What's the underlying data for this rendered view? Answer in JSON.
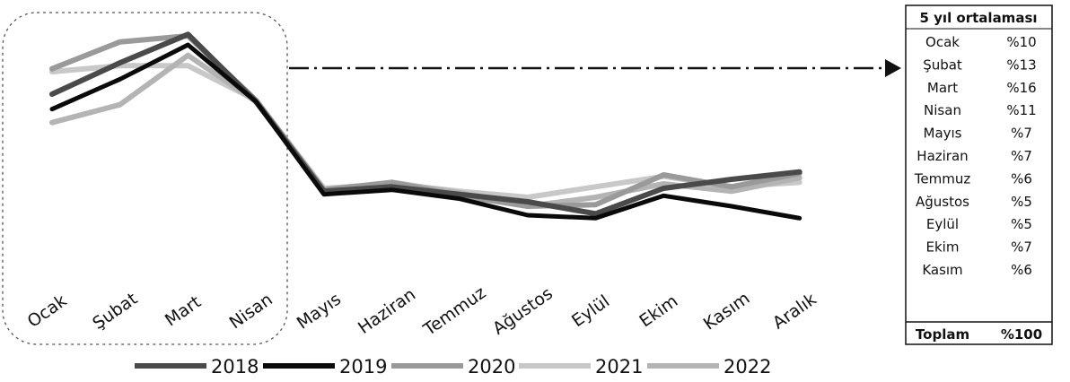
{
  "chart_data": {
    "type": "line",
    "categories": [
      "Ocak",
      "Şubat",
      "Mart",
      "Nisan",
      "Mayıs",
      "Haziran",
      "Temmuz",
      "Ağustos",
      "Eylül",
      "Ekim",
      "Kasım",
      "Aralık"
    ],
    "series": [
      {
        "name": "2018",
        "color": "#4a4a4a",
        "values": [
          13.5,
          15.6,
          17.5,
          13.0,
          7.0,
          7.3,
          6.8,
          6.3,
          5.5,
          7.2,
          7.8,
          8.3
        ]
      },
      {
        "name": "2019",
        "color": "#0a0a0a",
        "values": [
          12.5,
          14.5,
          16.8,
          13.0,
          6.8,
          7.1,
          6.5,
          5.4,
          5.2,
          6.7,
          6.0,
          5.2
        ]
      },
      {
        "name": "2020",
        "color": "#9a9a9a",
        "values": [
          15.2,
          17.0,
          17.4,
          13.1,
          7.1,
          7.6,
          6.7,
          6.0,
          6.1,
          8.1,
          7.3,
          8.2
        ]
      },
      {
        "name": "2021",
        "color": "#c8c8c8",
        "values": [
          15.0,
          15.4,
          15.4,
          13.1,
          7.2,
          7.5,
          7.0,
          6.6,
          7.3,
          8.0,
          7.3,
          7.6
        ]
      },
      {
        "name": "2022",
        "color": "#b4b4b4",
        "values": [
          11.6,
          12.8,
          16.1,
          13.0,
          7.0,
          7.6,
          6.9,
          6.0,
          6.6,
          7.5,
          7.0,
          7.9
        ]
      }
    ],
    "xlabel": "",
    "ylabel": "",
    "ylim": [
      4.8,
      18.0
    ],
    "grid": false,
    "legend": "bottom",
    "highlight_months": [
      "Ocak",
      "Şubat",
      "Mart",
      "Nisan"
    ]
  },
  "summary_table": {
    "title": "5 yıl ortalaması",
    "rows": [
      {
        "month": "Ocak",
        "value": "%10"
      },
      {
        "month": "Şubat",
        "value": "%13"
      },
      {
        "month": "Mart",
        "value": "%16"
      },
      {
        "month": "Nisan",
        "value": "%11"
      },
      {
        "month": "Mayıs",
        "value": "%7"
      },
      {
        "month": "Haziran",
        "value": "%7"
      },
      {
        "month": "Temmuz",
        "value": "%6"
      },
      {
        "month": "Ağustos",
        "value": "%5"
      },
      {
        "month": "Eylül",
        "value": "%5"
      },
      {
        "month": "Ekim",
        "value": "%7"
      },
      {
        "month": "Kasım",
        "value": "%6"
      }
    ],
    "total_label": "Toplam",
    "total_value": "%100"
  }
}
